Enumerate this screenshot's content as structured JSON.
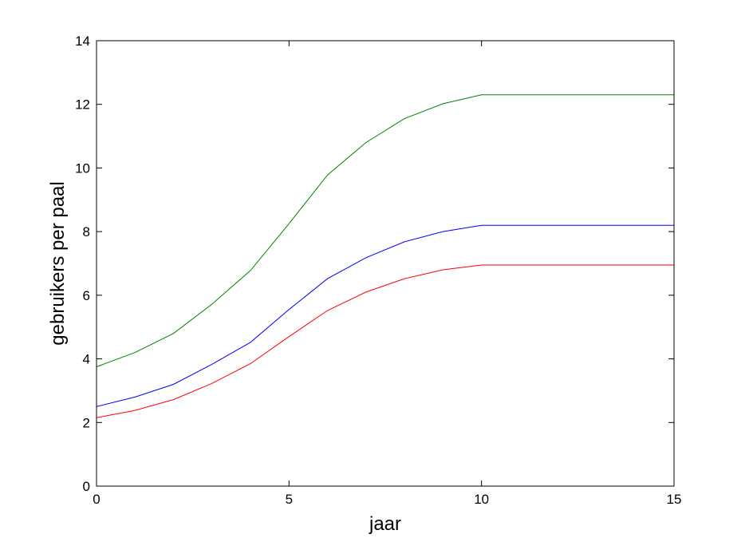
{
  "chart_data": {
    "type": "line",
    "title": "",
    "xlabel": "jaar",
    "ylabel": "gebruikers per paal",
    "xlim": [
      0,
      15
    ],
    "ylim": [
      0,
      14
    ],
    "xticks": [
      0,
      5,
      10,
      15
    ],
    "yticks": [
      0,
      2,
      4,
      6,
      8,
      10,
      12,
      14
    ],
    "grid": false,
    "legend": "none",
    "series": [
      {
        "color": "#008000",
        "x": [
          0,
          1,
          2,
          3,
          4,
          5,
          6,
          7,
          8,
          9,
          10,
          11,
          12,
          13,
          14,
          15
        ],
        "y": [
          3.75,
          4.2,
          4.8,
          5.72,
          6.78,
          8.25,
          9.78,
          10.8,
          11.55,
          12.02,
          12.3,
          12.3,
          12.3,
          12.3,
          12.3,
          12.3
        ]
      },
      {
        "color": "#0000ff",
        "x": [
          0,
          1,
          2,
          3,
          4,
          5,
          6,
          7,
          8,
          9,
          10,
          11,
          12,
          13,
          14,
          15
        ],
        "y": [
          2.5,
          2.8,
          3.2,
          3.83,
          4.52,
          5.55,
          6.52,
          7.18,
          7.68,
          8.0,
          8.2,
          8.2,
          8.2,
          8.2,
          8.2,
          8.2
        ]
      },
      {
        "color": "#ff0000",
        "x": [
          0,
          1,
          2,
          3,
          4,
          5,
          6,
          7,
          8,
          9,
          10,
          11,
          12,
          13,
          14,
          15
        ],
        "y": [
          2.15,
          2.38,
          2.72,
          3.23,
          3.85,
          4.7,
          5.52,
          6.1,
          6.52,
          6.8,
          6.95,
          6.95,
          6.95,
          6.95,
          6.95,
          6.95
        ]
      }
    ]
  }
}
